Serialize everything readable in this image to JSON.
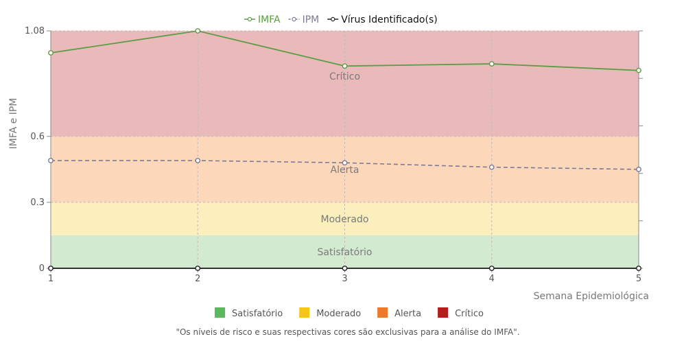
{
  "chart_data": {
    "type": "line",
    "x": [
      1,
      2,
      3,
      4,
      5
    ],
    "xlabel": "Semana Epidemiológica",
    "ylabel": "IMFA e IPM",
    "ylim": [
      0,
      1.08
    ],
    "y_ticks": [
      "0",
      "0.3",
      "0.6",
      "1.08"
    ],
    "y_tick_values": [
      0,
      0.3,
      0.6,
      1.08
    ],
    "grid": true,
    "legend_top": "top-center",
    "series": [
      {
        "name": "IMFA",
        "color": "#5b9c45",
        "style": "solid",
        "values": [
          0.98,
          1.08,
          0.92,
          0.93,
          0.9
        ]
      },
      {
        "name": "IPM",
        "color": "#7a7a96",
        "style": "dashed",
        "values": [
          0.49,
          0.49,
          0.48,
          0.46,
          0.45
        ]
      },
      {
        "name": "Vírus Identificado(s)",
        "color": "#222222",
        "style": "solid",
        "values": [
          0,
          0,
          0,
          0,
          0
        ]
      }
    ],
    "bands": [
      {
        "label": "Satisfatório",
        "from": 0,
        "to": 0.15,
        "color": "#d2ead0"
      },
      {
        "label": "Moderado",
        "from": 0.15,
        "to": 0.3,
        "color": "#fbefbe"
      },
      {
        "label": "Alerta",
        "from": 0.3,
        "to": 0.6,
        "color": "#fcd7b9"
      },
      {
        "label": "Crítico",
        "from": 0.6,
        "to": 1.08,
        "color": "#eababb"
      }
    ],
    "risk_legend": [
      {
        "label": "Satisfatório",
        "color": "#5cb85c"
      },
      {
        "label": "Moderado",
        "color": "#f5c518"
      },
      {
        "label": "Alerta",
        "color": "#f0782a"
      },
      {
        "label": "Crítico",
        "color": "#b71c1c"
      }
    ],
    "footnote": "\"Os níveis de risco e suas respectivas cores são exclusivas para a análise do IMFA\"."
  }
}
